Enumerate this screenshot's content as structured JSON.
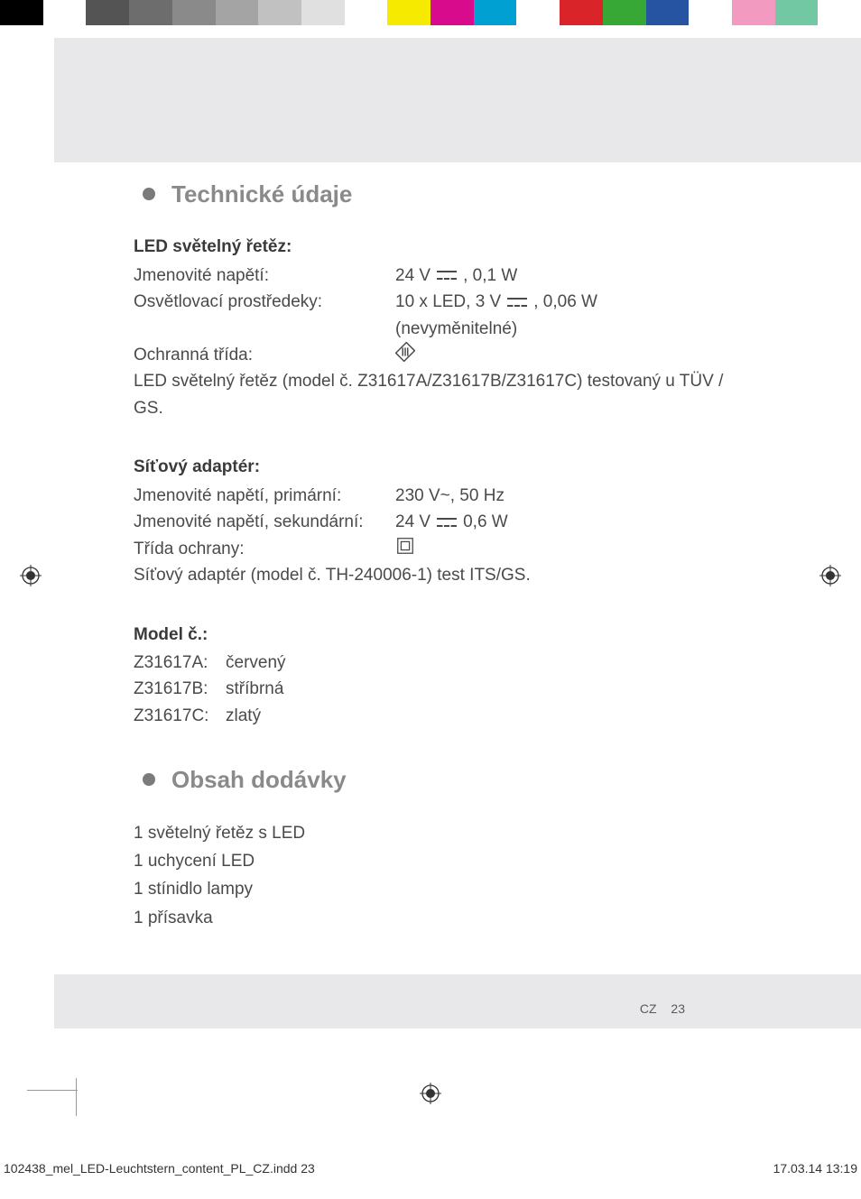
{
  "colorBar": [
    "#000000",
    "#ffffff",
    "#545454",
    "#6d6d6d",
    "#8a8a8a",
    "#a4a4a4",
    "#c1c1c1",
    "#e0e0e0",
    "#ffffff",
    "#f5ea00",
    "#d80b8c",
    "#00a0d2",
    "#ffffff",
    "#d9242a",
    "#37a836",
    "#2753a3",
    "#ffffff",
    "#f29ac0",
    "#73c8a4",
    "#ffffff"
  ],
  "section1": {
    "title": "Technické údaje",
    "block1": {
      "heading": "LED světelný řetěz:",
      "row1_label": "Jmenovité napětí:",
      "row1_value_a": "24 V",
      "row1_value_b": ", 0,1 W",
      "row2_label": "Osvětlovací prostředeky:",
      "row2_value_a": "10 x LED, 3 V",
      "row2_value_b": ", 0,06 W",
      "row2_note": "(nevyměnitelné)",
      "row3_label": "Ochranná třída:",
      "note": "LED světelný řetěz (model č. Z31617A/Z31617B/Z31617C) testovaný u TÜV / GS."
    },
    "block2": {
      "heading": "Síťový adaptér:",
      "row1_label": "Jmenovité napětí, primární:",
      "row1_value": "230 V~, 50 Hz",
      "row2_label": "Jmenovité napětí, sekundární:",
      "row2_value_a": "24 V",
      "row2_value_b": " 0,6 W",
      "row3_label": "Třída ochrany:",
      "note": "Síťový adaptér (model č. TH-240006-1) test ITS/GS."
    },
    "block3": {
      "heading": "Model č.:",
      "m1_code": "Z31617A:",
      "m1_val": "červený",
      "m2_code": "Z31617B:",
      "m2_val": "stříbrná",
      "m3_code": "Z31617C:",
      "m3_val": "zlatý"
    }
  },
  "section2": {
    "title": "Obsah dodávky",
    "items": {
      "i1": "1 světelný řetěz s LED",
      "i2": "1 uchycení LED",
      "i3": "1 stínidlo lampy",
      "i4": "1 přísavka"
    }
  },
  "pageFooter": {
    "lang": "CZ",
    "num": "23"
  },
  "imprint": {
    "file": "102438_mel_LED-Leuchtstern_content_PL_CZ.indd   23",
    "date": "17.03.14   13:19"
  }
}
